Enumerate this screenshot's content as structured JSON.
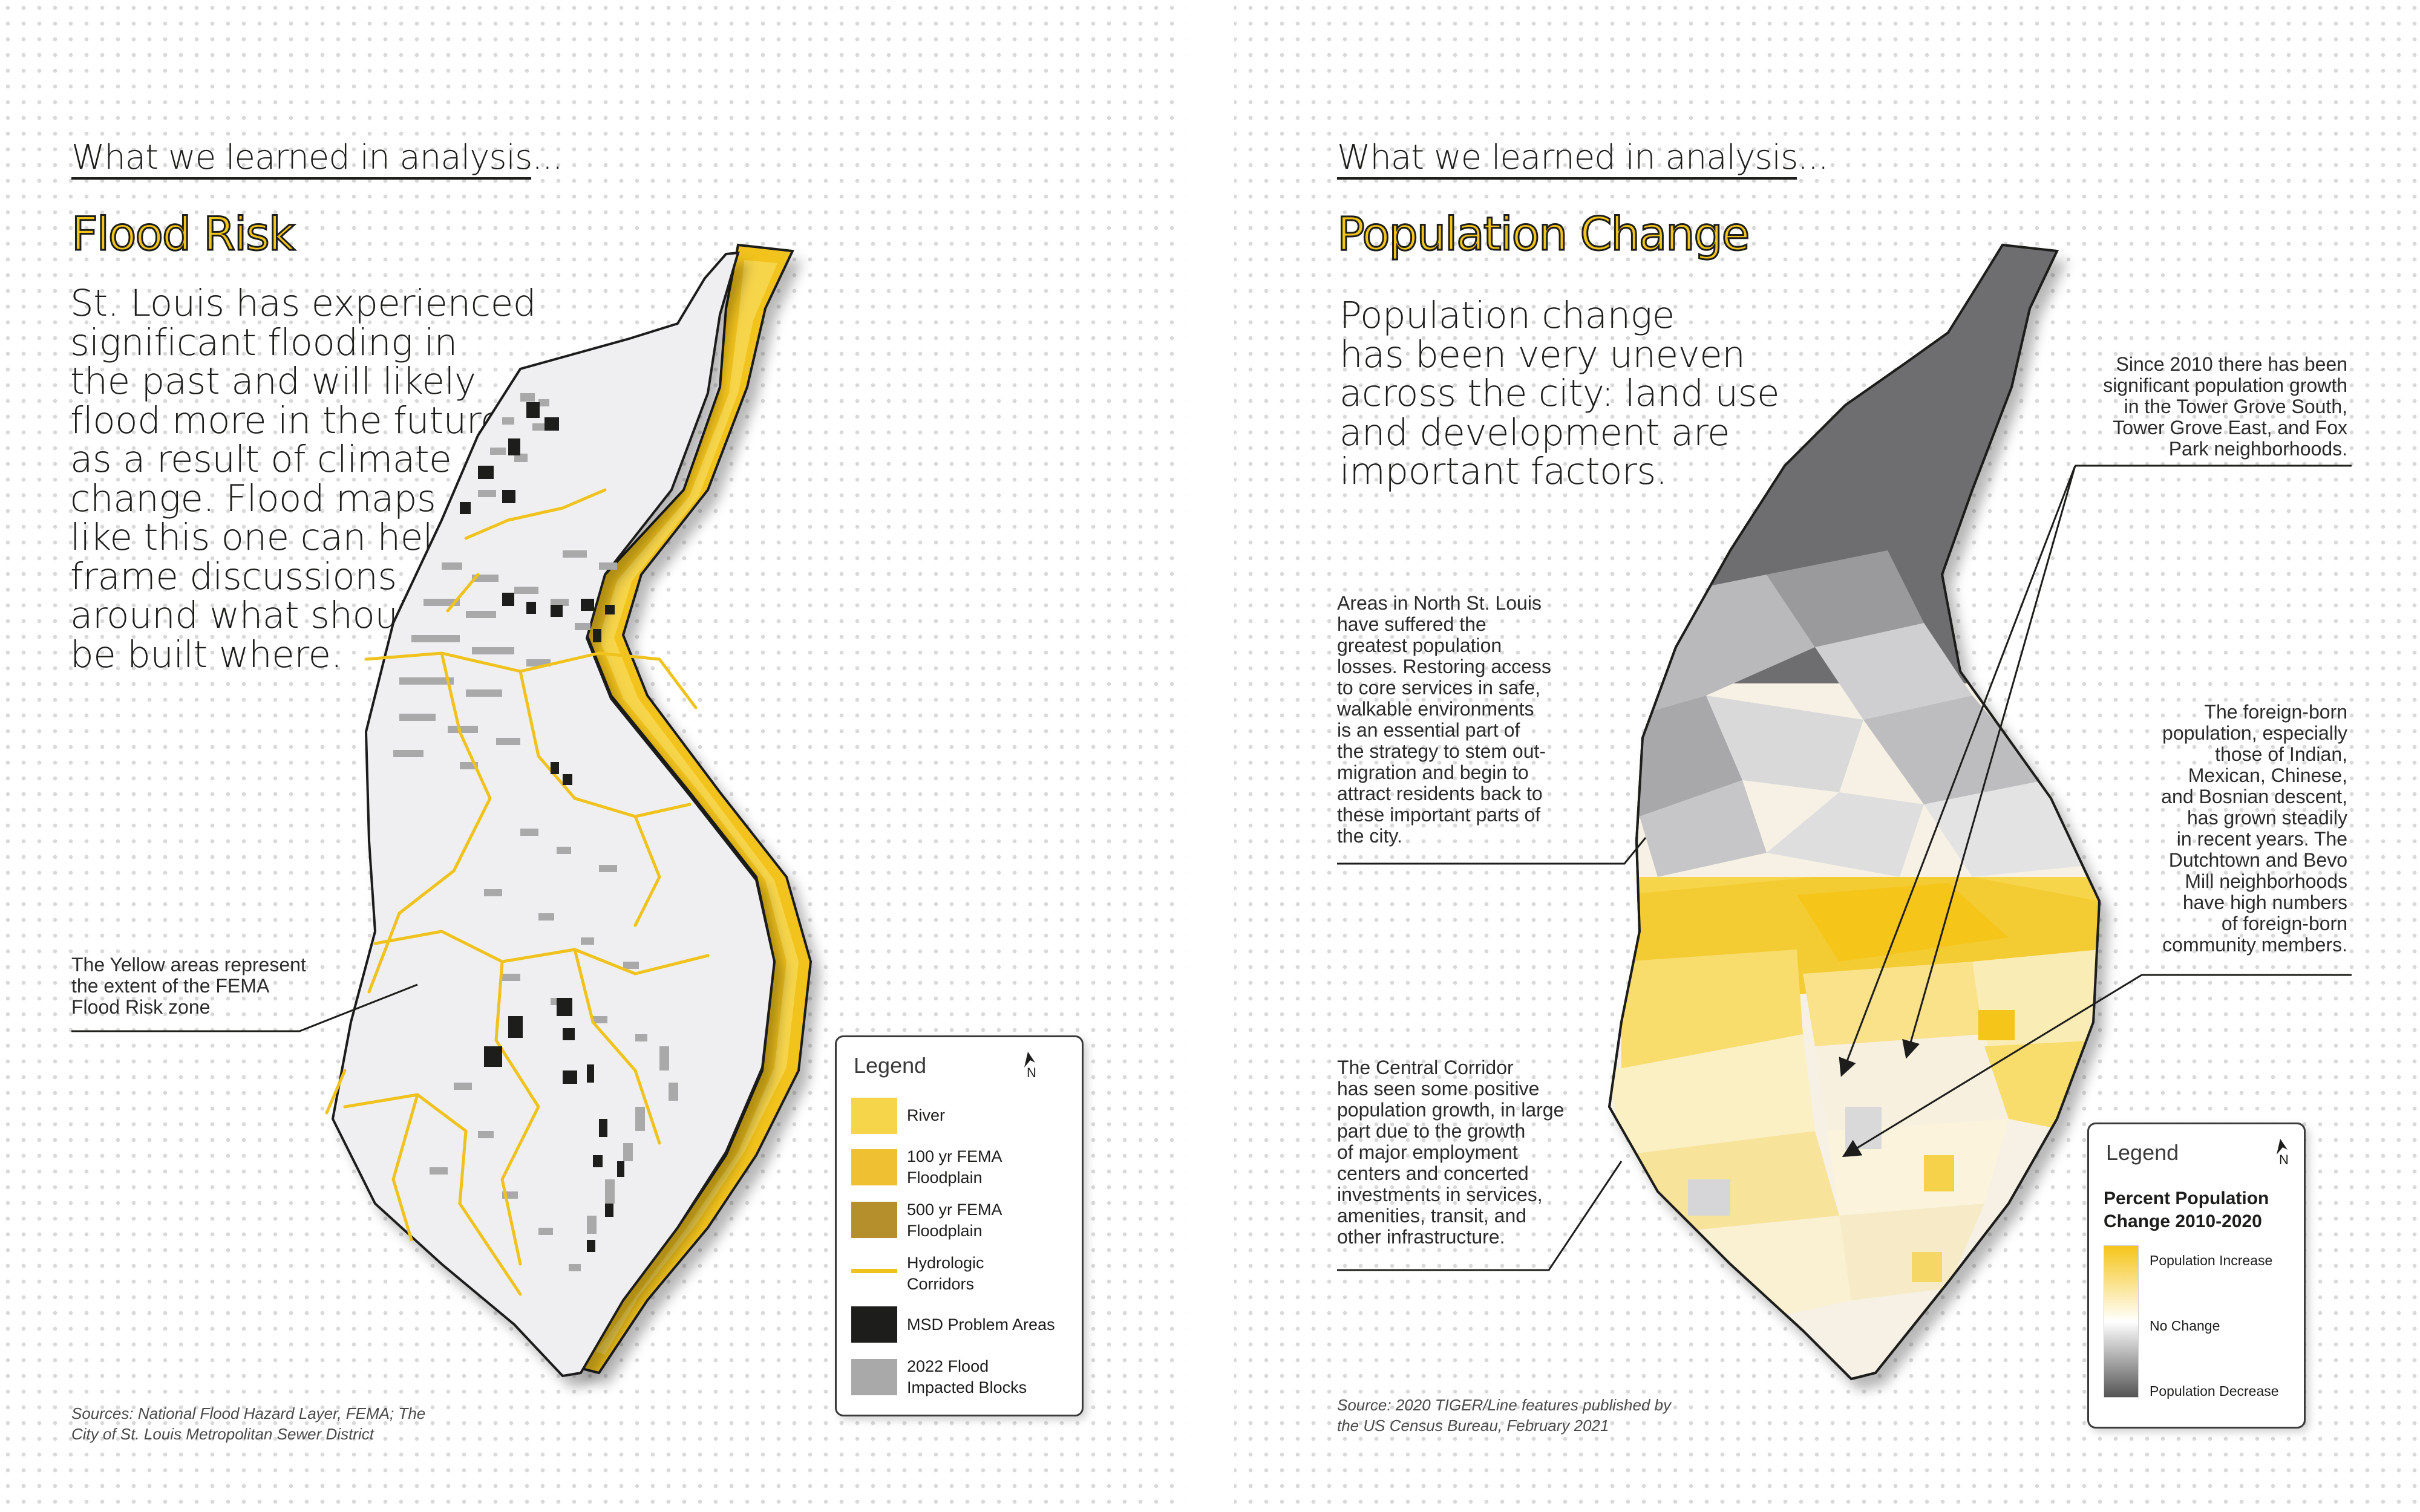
{
  "left_page": {
    "eyebrow": "What we learned in analysis...",
    "title": "Flood Risk",
    "lead": [
      "St. Louis has experienced",
      "significant flooding in",
      "the past and will likely",
      "flood more in the future",
      "as a result of climate",
      "change. Flood maps",
      "like this one can help",
      "frame discussions",
      "around what should",
      "be built where."
    ],
    "annotation": [
      "The Yellow areas represent",
      "the extent of the FEMA",
      "Flood Risk zone"
    ],
    "sources": [
      "Sources: National Flood Hazard Layer, FEMA; The",
      "City of St. Louis Metropolitan Sewer District"
    ],
    "legend": {
      "title": "Legend",
      "north_label": "N",
      "items": [
        {
          "label": [
            "River"
          ],
          "color": "#f7d54a",
          "kind": "fill"
        },
        {
          "label": [
            "100 yr FEMA",
            "Floodplain"
          ],
          "color": "#eec032",
          "kind": "fill"
        },
        {
          "label": [
            "500 yr FEMA",
            "Floodplain"
          ],
          "color": "#b58f2b",
          "kind": "fill"
        },
        {
          "label": [
            "Hydrologic",
            "Corridors"
          ],
          "color": "#f0c21e",
          "kind": "line"
        },
        {
          "label": [
            "MSD Problem Areas"
          ],
          "color": "#1d1d1b",
          "kind": "fill"
        },
        {
          "label": [
            "2022 Flood",
            "Impacted Blocks"
          ],
          "color": "#a9a9a9",
          "kind": "fill"
        }
      ]
    }
  },
  "right_page": {
    "eyebrow": "What we learned in analysis...",
    "title": "Population Change",
    "lead": [
      "Population change",
      "has been very uneven",
      "across the city: land use",
      "and development are",
      "important factors."
    ],
    "annotation_north": [
      "Areas in North St. Louis",
      "have suffered the",
      "greatest population",
      "losses. Restoring access",
      "to core services in safe,",
      "walkable environments",
      "is an essential part of",
      "the strategy to stem out-",
      "migration and begin to",
      "attract residents back to",
      "these important parts of",
      "the city."
    ],
    "annotation_central": [
      "The Central Corridor",
      "has seen some positive",
      "population growth, in large",
      "part due to the growth",
      "of major employment",
      "centers and concerted",
      "investments in services,",
      "amenities, transit, and",
      "other infrastructure."
    ],
    "annotation_growth": [
      "Since 2010 there has been",
      "significant population growth",
      "in the Tower Grove South,",
      "Tower Grove East, and Fox",
      "Park neighborhoods."
    ],
    "annotation_foreign": [
      "The foreign-born",
      "population, especially",
      "those of Indian,",
      "Mexican, Chinese,",
      "and Bosnian descent,",
      "has grown steadily",
      "in recent years. The",
      "Dutchtown and Bevo",
      "Mill neighborhoods",
      "have high numbers",
      "of foreign-born",
      "community members."
    ],
    "sources": [
      "Source: 2020 TIGER/Line features published by",
      "the US Census Bureau, February 2021"
    ],
    "legend": {
      "title": "Legend",
      "north_label": "N",
      "subtitle": [
        "Percent Population",
        "Change 2010-2020"
      ],
      "scale_top": "Population Increase",
      "scale_mid": "No Change",
      "scale_bottom": "Population Decrease",
      "color_increase": "#f5c51a",
      "color_none": "#ffffff",
      "color_decrease": "#555555"
    }
  }
}
